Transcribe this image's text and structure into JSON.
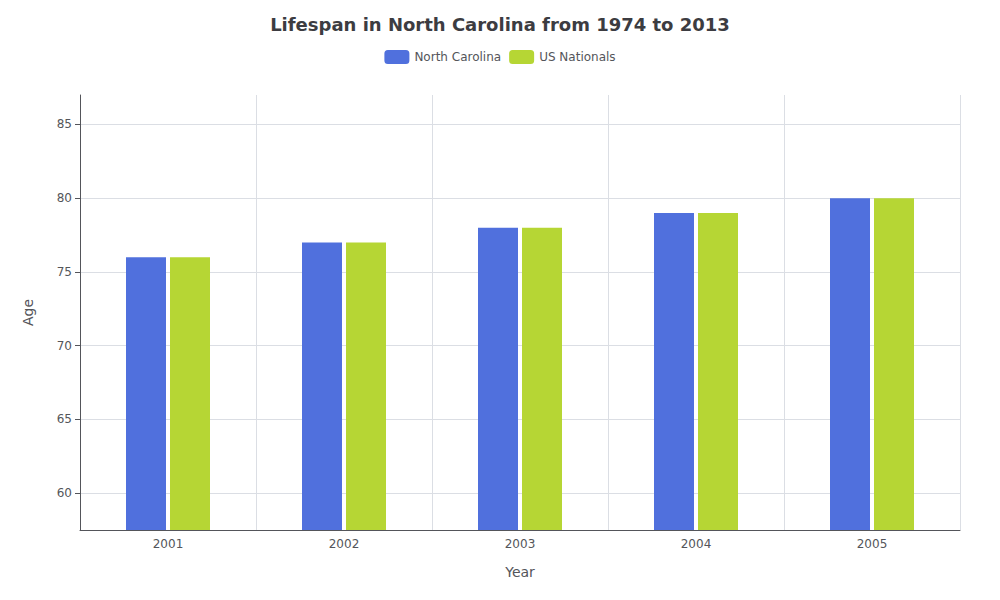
{
  "chart_data": {
    "type": "bar",
    "title": "Lifespan in North Carolina from 1974 to 2013",
    "xlabel": "Year",
    "ylabel": "Age",
    "categories": [
      "2001",
      "2002",
      "2003",
      "2004",
      "2005"
    ],
    "series": [
      {
        "name": "North Carolina",
        "values": [
          76,
          77,
          78,
          79,
          80
        ]
      },
      {
        "name": "US Nationals",
        "values": [
          76,
          77,
          78,
          79,
          80
        ]
      }
    ],
    "ylim": [
      57.5,
      87
    ],
    "yticks": [
      60,
      65,
      70,
      75,
      80,
      85
    ],
    "grid": true,
    "legend": "top"
  }
}
